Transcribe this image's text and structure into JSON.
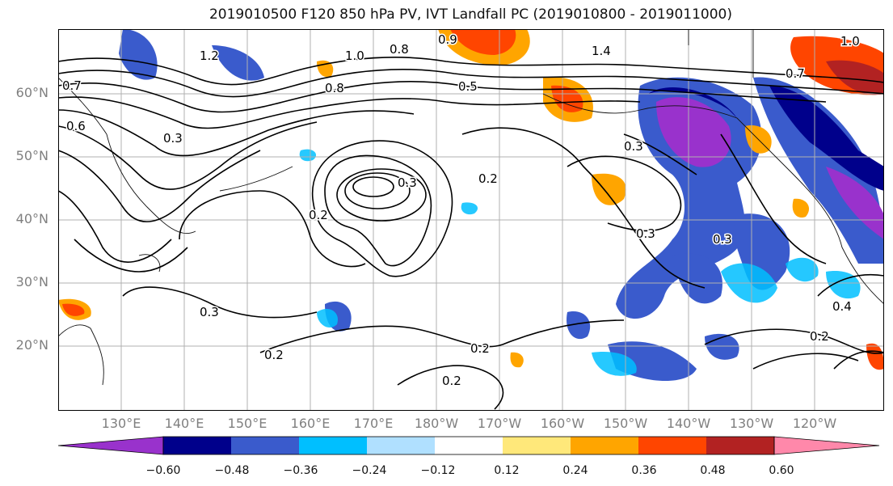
{
  "title": "2019010500 F120 850 hPa PV, IVT Landfall PC (2019010800 - 2019011000)",
  "lat_labels": [
    "60°N",
    "50°N",
    "40°N",
    "30°N",
    "20°N"
  ],
  "lon_labels": [
    "130°E",
    "140°E",
    "150°E",
    "160°E",
    "170°E",
    "180°W",
    "170°W",
    "160°W",
    "150°W",
    "140°W",
    "130°W",
    "120°W"
  ],
  "contour_labels": [
    "1.2",
    "1.0",
    "0.8",
    "0.9",
    "1.4",
    "1.0",
    "0.7",
    "0.5",
    "0.6",
    "0.8",
    "0.7",
    "0.3",
    "0.3",
    "0.2",
    "0.2",
    "0.3",
    "0.3",
    "0.3",
    "0.2",
    "0.2",
    "0.2",
    "0.4",
    "0.3",
    "0.2"
  ],
  "colorbar": {
    "colors": [
      "#9932cc",
      "#00008b",
      "#3a5bcc",
      "#00bfff",
      "#b0e0ff",
      "#ffffff",
      "#ffe87a",
      "#ffa500",
      "#ff4500",
      "#b22222",
      "#ff88aa"
    ],
    "tick_labels": [
      "−0.60",
      "−0.48",
      "−0.36",
      "−0.24",
      "−0.12",
      "0.12",
      "0.24",
      "0.36",
      "0.48",
      "0.60"
    ]
  }
}
